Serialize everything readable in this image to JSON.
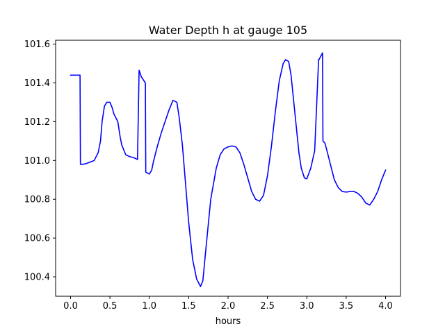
{
  "chart_data": {
    "type": "line",
    "title": "Water Depth h at gauge 105",
    "xlabel": "hours",
    "ylabel": "",
    "xlim": [
      -0.19,
      4.19
    ],
    "ylim": [
      100.3,
      101.62
    ],
    "xticks": [
      0.0,
      0.5,
      1.0,
      1.5,
      2.0,
      2.5,
      3.0,
      3.5,
      4.0
    ],
    "xtick_labels": [
      "0.0",
      "0.5",
      "1.0",
      "1.5",
      "2.0",
      "2.5",
      "3.0",
      "3.5",
      "4.0"
    ],
    "yticks": [
      100.4,
      100.6,
      100.8,
      101.0,
      101.2,
      101.4,
      101.6
    ],
    "ytick_labels": [
      "100.4",
      "100.6",
      "100.8",
      "101.0",
      "101.2",
      "101.4",
      "101.6"
    ],
    "grid": false,
    "legend": "none",
    "series": [
      {
        "color": "#0000ff",
        "x": [
          0.0,
          0.12,
          0.125,
          0.15,
          0.2,
          0.3,
          0.35,
          0.38,
          0.4,
          0.43,
          0.46,
          0.5,
          0.53,
          0.55,
          0.6,
          0.63,
          0.65,
          0.7,
          0.75,
          0.8,
          0.85,
          0.87,
          0.875,
          0.9,
          0.95,
          0.955,
          1.0,
          1.03,
          1.05,
          1.1,
          1.15,
          1.2,
          1.25,
          1.3,
          1.35,
          1.38,
          1.42,
          1.45,
          1.5,
          1.55,
          1.6,
          1.65,
          1.68,
          1.72,
          1.78,
          1.85,
          1.9,
          1.95,
          2.0,
          2.05,
          2.1,
          2.15,
          2.2,
          2.25,
          2.3,
          2.35,
          2.4,
          2.45,
          2.5,
          2.55,
          2.6,
          2.65,
          2.7,
          2.73,
          2.77,
          2.8,
          2.83,
          2.87,
          2.9,
          2.93,
          2.97,
          3.0,
          3.05,
          3.1,
          3.15,
          3.155,
          3.2,
          3.205,
          3.23,
          3.25,
          3.3,
          3.35,
          3.4,
          3.45,
          3.5,
          3.55,
          3.6,
          3.65,
          3.7,
          3.75,
          3.8,
          3.85,
          3.9,
          3.95,
          4.0
        ],
        "y": [
          101.44,
          101.44,
          100.98,
          100.98,
          100.984,
          101.0,
          101.04,
          101.1,
          101.2,
          101.28,
          101.3,
          101.3,
          101.27,
          101.24,
          101.2,
          101.12,
          101.08,
          101.03,
          101.02,
          101.015,
          101.005,
          101.465,
          101.46,
          101.43,
          101.4,
          100.94,
          100.93,
          100.95,
          100.99,
          101.07,
          101.14,
          101.2,
          101.26,
          101.31,
          101.3,
          101.22,
          101.08,
          100.93,
          100.68,
          100.49,
          100.39,
          100.35,
          100.38,
          100.55,
          100.8,
          100.96,
          101.03,
          101.06,
          101.07,
          101.075,
          101.07,
          101.04,
          100.98,
          100.91,
          100.84,
          100.8,
          100.79,
          100.82,
          100.92,
          101.07,
          101.25,
          101.41,
          101.5,
          101.52,
          101.51,
          101.44,
          101.32,
          101.16,
          101.04,
          100.96,
          100.91,
          100.905,
          100.96,
          101.05,
          101.52,
          101.52,
          101.555,
          101.1,
          101.09,
          101.06,
          100.98,
          100.9,
          100.86,
          100.84,
          100.837,
          100.84,
          100.84,
          100.83,
          100.81,
          100.78,
          100.77,
          100.8,
          100.84,
          100.9,
          100.95
        ]
      }
    ]
  }
}
